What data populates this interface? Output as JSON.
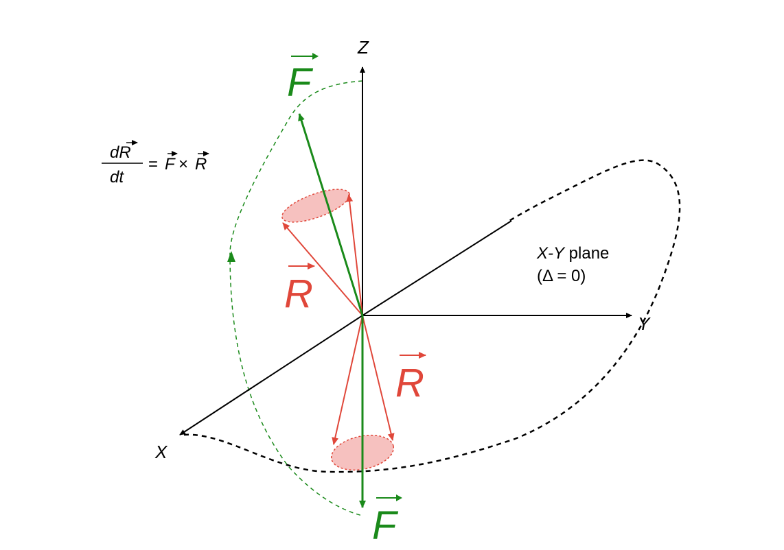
{
  "axes": {
    "x_label": "X",
    "y_label": "Y",
    "z_label": "Z"
  },
  "vectors": {
    "f_label": "F",
    "r_label": "R"
  },
  "equation": {
    "numerator_d": "d",
    "numerator_var": "R",
    "denominator": "dt",
    "equals": "=",
    "lhs_var": "F",
    "times": "×",
    "rhs_var": "R"
  },
  "plane": {
    "name_italic": "X-Y",
    "name_rest": " plane",
    "condition": "(Δ = 0)"
  },
  "colors": {
    "field_vector": "#1a8a1a",
    "state_vector": "#e0473a",
    "cone_fill": "#f4b6b4",
    "axes": "#000000"
  }
}
